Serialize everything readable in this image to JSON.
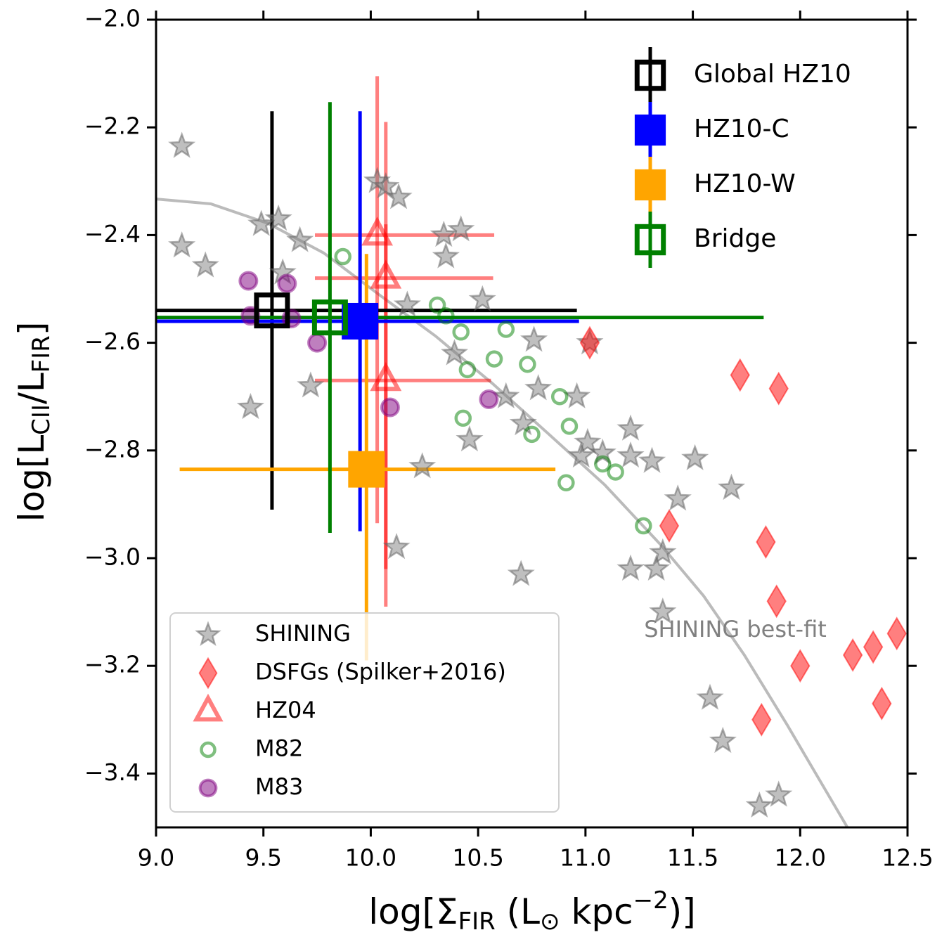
{
  "chart_data": {
    "type": "scatter",
    "xlabel": [
      "log[Σ",
      "FIR",
      " (L",
      "⊙",
      " kpc",
      "−2",
      ")]"
    ],
    "ylabel": [
      "log[L",
      "CII",
      "/L",
      "FIR",
      "]"
    ],
    "xlim": [
      9.0,
      12.5
    ],
    "ylim": [
      -3.5,
      -2.0
    ],
    "xticks": [
      {
        "value": 9,
        "label": "9.0"
      },
      9.5,
      {
        "value": 10,
        "label": "10.0"
      },
      10.5,
      {
        "value": 11,
        "label": "11.0"
      },
      11.5,
      {
        "value": 12,
        "label": "12.0"
      },
      12.5
    ],
    "yticks": [
      {
        "value": -2.0,
        "label": "−2.0"
      },
      {
        "value": -2.2,
        "label": "−2.2"
      },
      {
        "value": -2.4,
        "label": "−2.4"
      },
      {
        "value": -2.6,
        "label": "−2.6"
      },
      {
        "value": -2.8,
        "label": "−2.8"
      },
      {
        "value": -3.0,
        "label": "−3.0"
      },
      {
        "value": -3.2,
        "label": "−3.2"
      },
      {
        "value": -3.4,
        "label": "−3.4"
      }
    ],
    "grid": false,
    "fit": {
      "color": "#bbbbbb",
      "x": [
        9.0,
        9.255,
        9.52,
        9.78,
        10.04,
        10.3,
        10.565,
        10.83,
        11.09,
        11.35,
        11.55,
        11.74,
        11.94,
        12.22
      ],
      "values": [
        -2.333,
        -2.342,
        -2.378,
        -2.433,
        -2.511,
        -2.587,
        -2.675,
        -2.77,
        -2.864,
        -2.975,
        -3.07,
        -3.18,
        -3.31,
        -3.5
      ]
    },
    "annotation": "SHINING best-fit",
    "series": [
      {
        "name": "SHINING",
        "color": "#808080",
        "marker": "star",
        "filled": true,
        "alpha": 0.5,
        "legend": "lower left",
        "x": [
          9.12,
          9.12,
          9.23,
          9.49,
          9.57,
          9.67,
          9.59,
          9.44,
          9.72,
          10.03,
          10.07,
          10.13,
          10.34,
          10.42,
          10.35,
          10.17,
          10.52,
          10.39,
          10.46,
          10.63,
          10.76,
          10.78,
          10.71,
          10.96,
          11.01,
          10.98,
          11.02,
          11.08,
          11.21,
          11.21,
          11.31,
          11.51,
          11.43,
          11.68,
          11.36,
          11.33,
          11.21,
          11.36,
          11.58,
          11.64,
          11.81,
          11.9,
          10.12,
          10.7,
          10.24
        ],
        "values": [
          -2.235,
          -2.42,
          -2.457,
          -2.38,
          -2.37,
          -2.41,
          -2.47,
          -2.72,
          -2.68,
          -2.3,
          -2.31,
          -2.33,
          -2.4,
          -2.39,
          -2.44,
          -2.53,
          -2.52,
          -2.62,
          -2.78,
          -2.7,
          -2.595,
          -2.685,
          -2.75,
          -2.7,
          -2.785,
          -2.81,
          -2.6,
          -2.805,
          -2.76,
          -2.81,
          -2.82,
          -2.815,
          -2.89,
          -2.87,
          -2.99,
          -3.02,
          -3.02,
          -3.1,
          -3.26,
          -3.34,
          -3.46,
          -3.44,
          -2.98,
          -3.03,
          -2.83
        ]
      },
      {
        "name": "DSFGs (Spilker+2016)",
        "color": "#ff0000",
        "marker": "diamond",
        "filled": true,
        "alpha": 0.5,
        "legend": "lower left",
        "x": [
          11.02,
          11.72,
          11.9,
          11.39,
          11.84,
          11.89,
          12.0,
          12.245,
          12.34,
          12.45,
          12.38,
          11.82
        ],
        "values": [
          -2.6,
          -2.66,
          -2.685,
          -2.94,
          -2.97,
          -3.08,
          -3.2,
          -3.18,
          -3.165,
          -3.14,
          -3.27,
          -3.3
        ]
      },
      {
        "name": "HZ04",
        "color": "#ff0000",
        "marker": "triangle",
        "filled": false,
        "alpha": 0.5,
        "legend": "lower left",
        "x": [
          10.03,
          10.07,
          10.07
        ],
        "values": [
          -2.4,
          -2.48,
          -2.67
        ],
        "xerr": [
          [
            0.29,
            0.545
          ],
          [
            0.33,
            0.5
          ],
          [
            0.33,
            0.49
          ]
        ],
        "yerr": [
          [
            0.535,
            0.295
          ],
          [
            0.54,
            0.29
          ],
          [
            0.42,
            0.29
          ]
        ]
      },
      {
        "name": "M82",
        "color": "#008000",
        "marker": "circle",
        "filled": false,
        "alpha": 0.5,
        "legend": "lower left",
        "x": [
          9.87,
          10.31,
          10.35,
          10.42,
          10.63,
          10.45,
          10.575,
          10.73,
          10.43,
          10.75,
          10.88,
          10.925,
          11.08,
          11.14,
          10.91,
          11.27
        ],
        "values": [
          -2.44,
          -2.53,
          -2.55,
          -2.58,
          -2.575,
          -2.65,
          -2.63,
          -2.64,
          -2.74,
          -2.77,
          -2.7,
          -2.755,
          -2.825,
          -2.84,
          -2.86,
          -2.94
        ]
      },
      {
        "name": "M83",
        "color": "#800080",
        "marker": "circle",
        "filled": true,
        "alpha": 0.5,
        "legend": "lower left",
        "x": [
          9.43,
          9.61,
          9.44,
          9.63,
          9.75,
          10.09,
          10.55
        ],
        "values": [
          -2.485,
          -2.49,
          -2.55,
          -2.555,
          -2.6,
          -2.72,
          -2.705
        ]
      },
      {
        "name": "Global HZ10",
        "color": "#000000",
        "marker": "square",
        "filled": false,
        "alpha": 1,
        "legend": "upper right",
        "x": [
          9.54
        ],
        "values": [
          -2.54
        ],
        "xerr": [
          [
            0.6,
            1.42
          ]
        ],
        "yerr": [
          [
            0.37,
            0.37
          ]
        ]
      },
      {
        "name": "HZ10-C",
        "color": "#0000ff",
        "marker": "square",
        "filled": true,
        "alpha": 1,
        "legend": "upper right",
        "x": [
          9.95
        ],
        "values": [
          -2.56
        ],
        "xerr": [
          [
            1.0,
            1.02
          ]
        ],
        "yerr": [
          [
            0.39,
            0.39
          ]
        ]
      },
      {
        "name": "HZ10-W",
        "color": "#ffa500",
        "marker": "square",
        "filled": true,
        "alpha": 1,
        "legend": "upper right",
        "x": [
          9.98
        ],
        "values": [
          -2.835
        ],
        "xerr": [
          [
            0.87,
            0.88
          ]
        ],
        "yerr": [
          [
            0.355,
            0.4
          ]
        ]
      },
      {
        "name": "Bridge",
        "color": "#008000",
        "marker": "square",
        "filled": false,
        "alpha": 1,
        "legend": "upper right",
        "x": [
          9.81
        ],
        "values": [
          -2.553
        ],
        "xerr": [
          [
            1.0,
            2.02
          ]
        ],
        "yerr": [
          [
            0.4,
            0.4
          ]
        ]
      }
    ]
  }
}
